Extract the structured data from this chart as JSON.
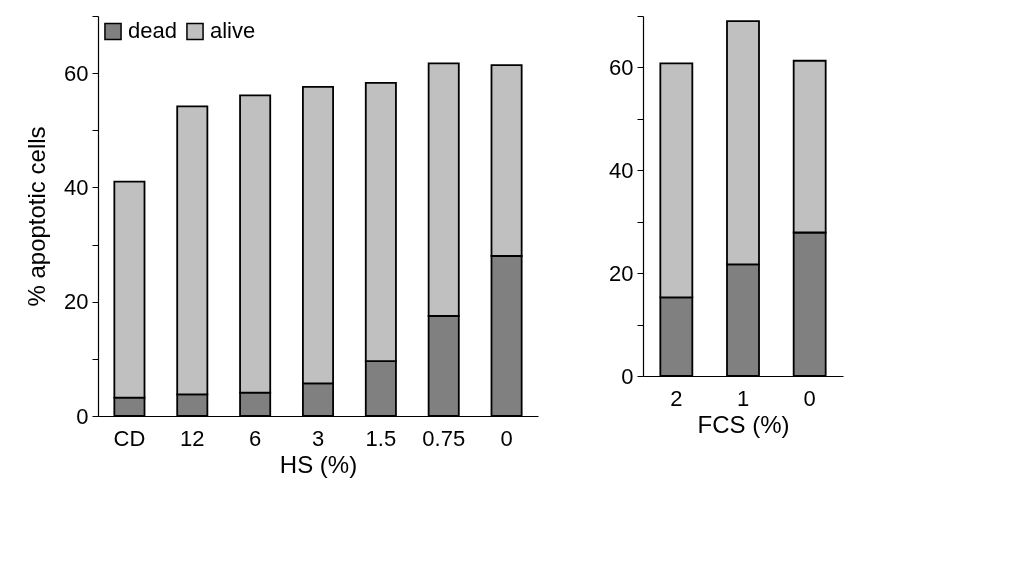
{
  "chart_data": [
    {
      "type": "bar",
      "stacked": true,
      "xlabel": "HS (%)",
      "ylabel": "% apoptotic cells",
      "categories": [
        "CD",
        "12",
        "6",
        "3",
        "1.5",
        "0.75",
        "0"
      ],
      "series": [
        {
          "name": "dead",
          "color": "#808080",
          "values": [
            3.2,
            3.8,
            4.1,
            5.7,
            9.6,
            17.5,
            28.0
          ]
        },
        {
          "name": "alive",
          "color": "#c0c0c0",
          "values": [
            37.8,
            50.4,
            52.0,
            51.9,
            48.7,
            44.2,
            33.4
          ]
        }
      ],
      "ylim": [
        0,
        70
      ],
      "yticks": [
        0,
        {
          "value": 10,
          "label": null
        },
        20,
        {
          "value": 30,
          "label": null
        },
        40,
        {
          "value": 50,
          "label": null
        },
        60,
        {
          "value": 70,
          "label": null
        }
      ],
      "grid": false,
      "legend": "top left"
    },
    {
      "type": "bar",
      "stacked": true,
      "xlabel": "FCS (%)",
      "categories": [
        "2",
        "1",
        "0"
      ],
      "series": [
        {
          "color": "#808080",
          "values": [
            15.3,
            21.7,
            27.9
          ]
        },
        {
          "color": "#c0c0c0",
          "values": [
            45.5,
            47.3,
            33.4
          ]
        }
      ],
      "ylim": [
        0,
        70
      ],
      "yticks": [
        0,
        {
          "value": 10,
          "label": null
        },
        20,
        {
          "value": 30,
          "label": null
        },
        40,
        {
          "value": 50,
          "label": null
        },
        60,
        {
          "value": 70,
          "label": null
        }
      ],
      "grid": false,
      "legend": false
    }
  ]
}
